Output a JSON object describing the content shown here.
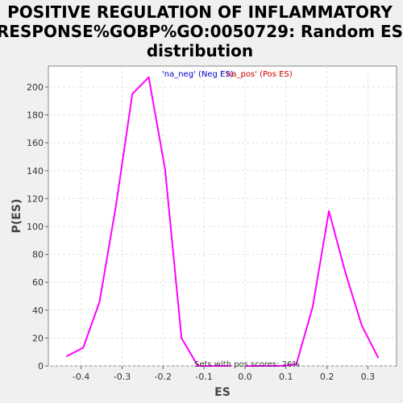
{
  "chart_data": {
    "type": "line",
    "title": [
      "POSITIVE REGULATION OF INFLAMMATORY",
      "RESPONSE%GOBP%GO:0050729: Random ES",
      "distribution"
    ],
    "xlabel": "ES",
    "ylabel": "P(ES)",
    "xlim": [
      -0.48,
      0.37
    ],
    "ylim": [
      0,
      215
    ],
    "xticks": [
      -0.4,
      -0.3,
      -0.2,
      -0.1,
      0.0,
      0.1,
      0.2,
      0.3
    ],
    "xtick_labels": [
      "-0.4",
      "-0.3",
      "-0.2",
      "-0.1",
      "0.0",
      "0.1",
      "0.2",
      "0.3"
    ],
    "yticks": [
      0,
      20,
      40,
      60,
      80,
      100,
      120,
      140,
      160,
      180,
      200
    ],
    "yticks_labels": [
      "0",
      "20",
      "40",
      "60",
      "80",
      "100",
      "120",
      "140",
      "160",
      "180",
      "200"
    ],
    "grid": true,
    "legend_placement": "top-center",
    "series": [
      {
        "name": "'na_neg' (Neg ES)",
        "color": "#ff00ff",
        "legend_color": "#0000cc",
        "x": [
          -0.435,
          -0.395,
          -0.355,
          -0.315,
          -0.275,
          -0.235,
          -0.195,
          -0.155,
          -0.115,
          -0.075,
          -0.035
        ],
        "y": [
          7,
          13,
          46,
          115,
          195,
          207,
          141,
          20,
          0,
          0,
          0
        ]
      },
      {
        "name": "na_pos' (Pos ES)",
        "color": "#ff00ff",
        "legend_color": "#cc0000",
        "x": [
          0.005,
          0.045,
          0.085,
          0.125,
          0.165,
          0.205,
          0.245,
          0.285,
          0.325
        ],
        "y": [
          0,
          0,
          0,
          1,
          42,
          111,
          67,
          29,
          6
        ]
      }
    ],
    "annotation": "Sets with pos scores: 26%"
  }
}
